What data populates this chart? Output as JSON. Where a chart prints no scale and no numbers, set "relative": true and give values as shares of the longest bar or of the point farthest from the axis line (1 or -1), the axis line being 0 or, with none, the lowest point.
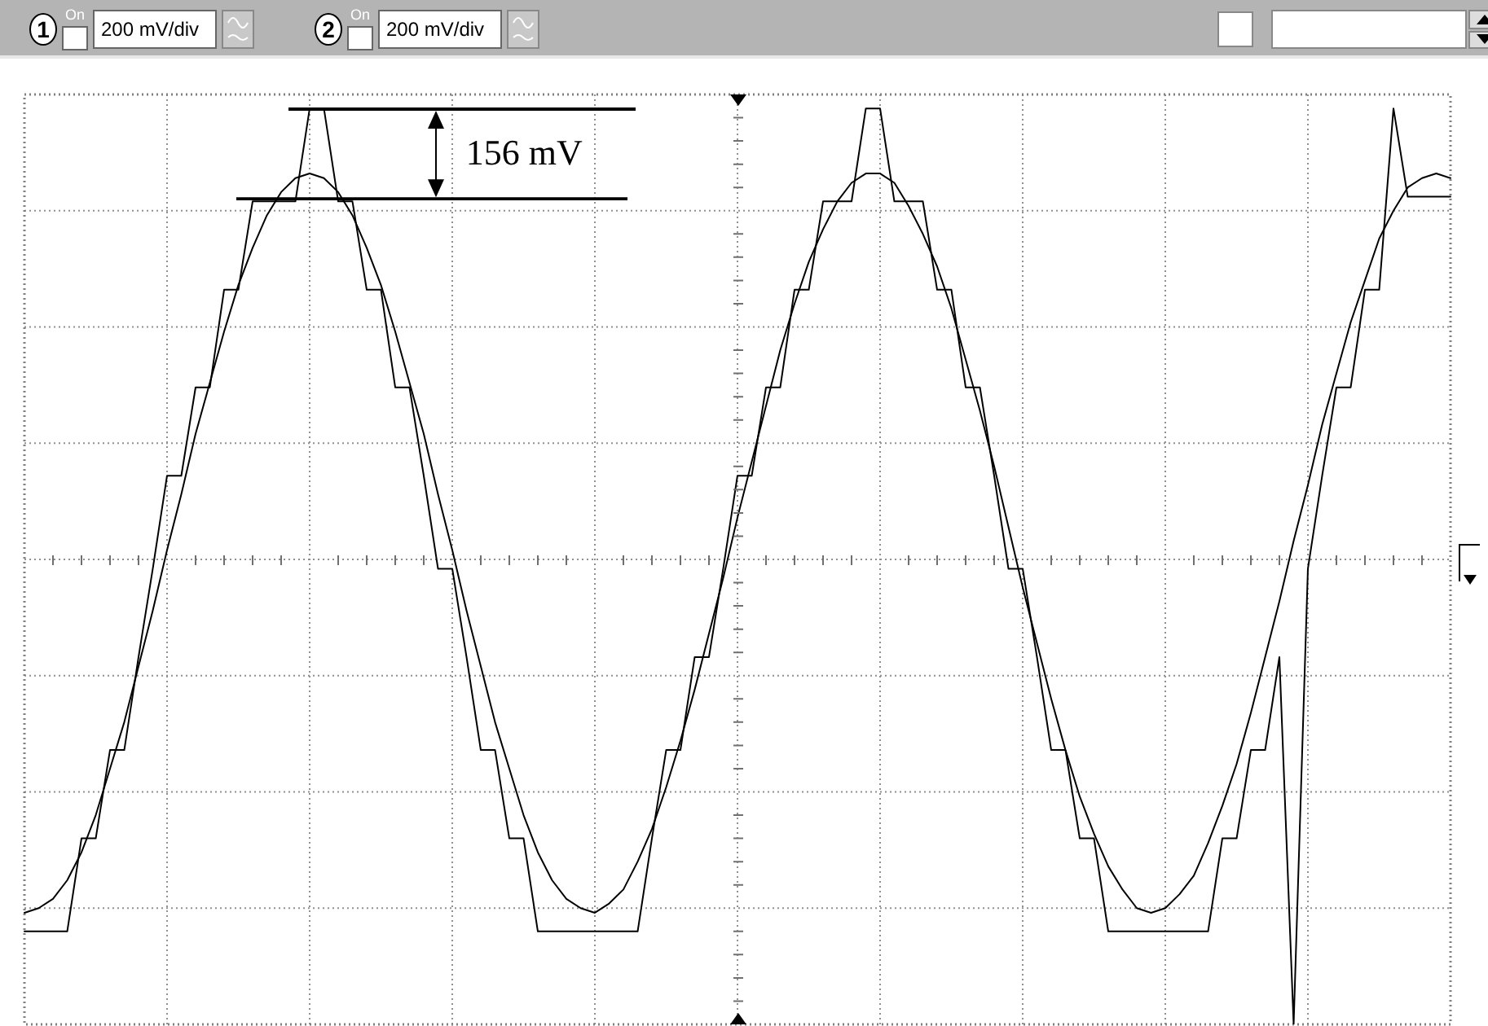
{
  "chart_data": {
    "type": "line",
    "relative": true,
    "grid": true,
    "legend": false,
    "marker": "none",
    "line_style": "solid",
    "annotations": [
      "156 mV",
      "1",
      "On",
      "200 mV/div",
      "2",
      "On",
      "200 mV/div"
    ],
    "categories": [
      null,
      null,
      null,
      null,
      null,
      null,
      null,
      null,
      null,
      null,
      null,
      null,
      null,
      null,
      null,
      null,
      null,
      null,
      null,
      null,
      null,
      null,
      null,
      null,
      null,
      null,
      null,
      null,
      null,
      null,
      null,
      null,
      null,
      null,
      null,
      null,
      null,
      null,
      null,
      null,
      null,
      null,
      null,
      null,
      null,
      null,
      null,
      null,
      null,
      null,
      null,
      null,
      null,
      null,
      null,
      null,
      null,
      null,
      null,
      null,
      null,
      null,
      null,
      null,
      null,
      null,
      null,
      null,
      null,
      null,
      null,
      null,
      null,
      null,
      null,
      null,
      null,
      null,
      null,
      null,
      null,
      null,
      null,
      null,
      null,
      null,
      null,
      null,
      null,
      null,
      null,
      null,
      null,
      null,
      null,
      null,
      null,
      null,
      null,
      null,
      null
    ],
    "series": [
      {
        "color": "#000000",
        "values": [
          -0.76,
          -0.75,
          -0.73,
          -0.69,
          -0.63,
          -0.55,
          -0.45,
          -0.35,
          -0.23,
          -0.11,
          0.02,
          0.14,
          0.27,
          0.38,
          0.49,
          0.59,
          0.67,
          0.74,
          0.79,
          0.82,
          0.83,
          0.82,
          0.79,
          0.74,
          0.67,
          0.59,
          0.49,
          0.38,
          0.27,
          0.14,
          0.02,
          -0.11,
          -0.23,
          -0.35,
          -0.45,
          -0.55,
          -0.63,
          -0.69,
          -0.73,
          -0.75,
          -0.76,
          -0.74,
          -0.71,
          -0.65,
          -0.58,
          -0.49,
          -0.39,
          -0.28,
          -0.16,
          -0.04,
          0.09,
          0.21,
          0.33,
          0.45,
          0.55,
          0.64,
          0.71,
          0.77,
          0.81,
          0.83,
          0.83,
          0.81,
          0.76,
          0.7,
          0.63,
          0.54,
          0.43,
          0.32,
          0.2,
          0.07,
          -0.06,
          -0.18,
          -0.3,
          -0.41,
          -0.51,
          -0.59,
          -0.66,
          -0.71,
          -0.75,
          -0.76,
          -0.75,
          -0.72,
          -0.68,
          -0.61,
          -0.53,
          -0.44,
          -0.33,
          -0.21,
          -0.09,
          0.04,
          0.16,
          0.29,
          0.4,
          0.51,
          0.6,
          0.69,
          0.75,
          0.8,
          0.82,
          0.83,
          0.82
        ]
      },
      {
        "color": "#000000",
        "values": [
          -0.8,
          -0.8,
          -0.8,
          -0.8,
          -0.6,
          -0.6,
          -0.41,
          -0.41,
          -0.21,
          -0.02,
          0.18,
          0.18,
          0.37,
          0.37,
          0.58,
          0.58,
          0.77,
          0.77,
          0.77,
          0.77,
          0.97,
          0.97,
          0.77,
          0.77,
          0.58,
          0.58,
          0.37,
          0.37,
          0.18,
          -0.02,
          -0.02,
          -0.21,
          -0.41,
          -0.41,
          -0.6,
          -0.6,
          -0.8,
          -0.8,
          -0.8,
          -0.8,
          -0.8,
          -0.8,
          -0.8,
          -0.8,
          -0.6,
          -0.41,
          -0.41,
          -0.21,
          -0.21,
          -0.02,
          0.18,
          0.18,
          0.37,
          0.37,
          0.58,
          0.58,
          0.77,
          0.77,
          0.77,
          0.97,
          0.97,
          0.77,
          0.77,
          0.77,
          0.58,
          0.58,
          0.37,
          0.37,
          0.18,
          -0.02,
          -0.02,
          -0.21,
          -0.41,
          -0.41,
          -0.6,
          -0.6,
          -0.8,
          -0.8,
          -0.8,
          -0.8,
          -0.8,
          -0.8,
          -0.8,
          -0.8,
          -0.6,
          -0.6,
          -0.41,
          -0.41,
          -0.21,
          -1,
          -0.02,
          0.18,
          0.37,
          0.37,
          0.58,
          0.58,
          0.97,
          0.78,
          0.78,
          0.78,
          0.78
        ]
      }
    ]
  }
}
